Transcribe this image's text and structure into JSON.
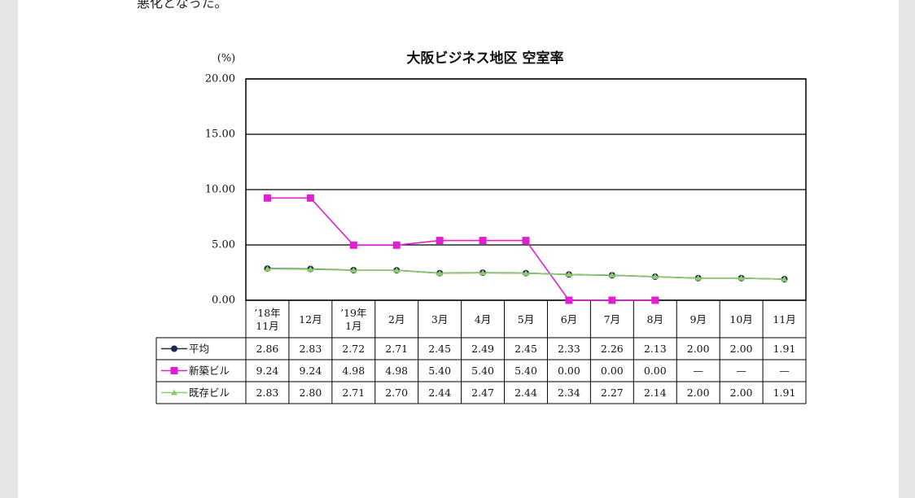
{
  "intro_text": "悪化となった。",
  "chart_data": {
    "type": "line",
    "title": "大阪ビジネス地区 空室率",
    "y_unit": "(%)",
    "categories": [
      "’18年\n11月",
      "12月",
      "’19年\n1月",
      "2月",
      "3月",
      "4月",
      "5月",
      "6月",
      "7月",
      "8月",
      "9月",
      "10月",
      "11月"
    ],
    "ylim": [
      0,
      20
    ],
    "yticks": [
      {
        "value": 0,
        "label": "0.00"
      },
      {
        "value": 5,
        "label": "5.00"
      },
      {
        "value": 10,
        "label": "10.00"
      },
      {
        "value": 15,
        "label": "15.00"
      },
      {
        "value": 20,
        "label": "20.00"
      }
    ],
    "grid": true,
    "series": [
      {
        "name": "平均",
        "color": "#1c2a4c",
        "marker": "circle",
        "values": [
          2.86,
          2.83,
          2.72,
          2.71,
          2.45,
          2.49,
          2.45,
          2.33,
          2.26,
          2.13,
          2.0,
          2.0,
          1.91
        ],
        "value_labels": [
          "2.86",
          "2.83",
          "2.72",
          "2.71",
          "2.45",
          "2.49",
          "2.45",
          "2.33",
          "2.26",
          "2.13",
          "2.00",
          "2.00",
          "1.91"
        ]
      },
      {
        "name": "新築ビル",
        "color": "#e020d0",
        "marker": "square",
        "values": [
          9.24,
          9.24,
          4.98,
          4.98,
          5.4,
          5.4,
          5.4,
          0.0,
          0.0,
          0.0,
          null,
          null,
          null
        ],
        "value_labels": [
          "9.24",
          "9.24",
          "4.98",
          "4.98",
          "5.40",
          "5.40",
          "5.40",
          "0.00",
          "0.00",
          "0.00",
          "—",
          "—",
          "—"
        ]
      },
      {
        "name": "既存ビル",
        "color": "#8ccc6c",
        "marker": "triangle",
        "values": [
          2.83,
          2.8,
          2.71,
          2.7,
          2.44,
          2.47,
          2.44,
          2.34,
          2.27,
          2.14,
          2.0,
          2.0,
          1.91
        ],
        "value_labels": [
          "2.83",
          "2.80",
          "2.71",
          "2.70",
          "2.44",
          "2.47",
          "2.44",
          "2.34",
          "2.27",
          "2.14",
          "2.00",
          "2.00",
          "1.91"
        ]
      }
    ]
  }
}
